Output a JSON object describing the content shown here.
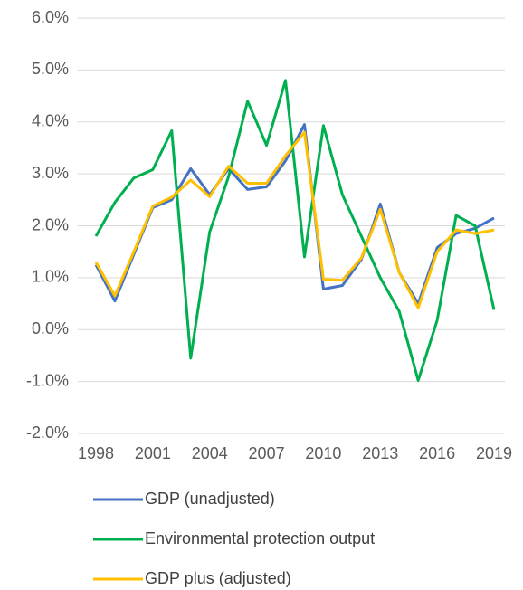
{
  "chart_data": {
    "type": "line",
    "x": [
      1998,
      1999,
      2000,
      2001,
      2002,
      2003,
      2004,
      2005,
      2006,
      2007,
      2008,
      2009,
      2010,
      2011,
      2012,
      2013,
      2014,
      2015,
      2016,
      2017,
      2018,
      2019
    ],
    "xlim": [
      1998,
      2019
    ],
    "xticks": [
      1998,
      2001,
      2004,
      2007,
      2010,
      2013,
      2016,
      2019
    ],
    "ylim": [
      -2,
      6
    ],
    "yticks": [
      {
        "value": -2,
        "label": "-2.0%"
      },
      {
        "value": -1,
        "label": "-1.0%"
      },
      {
        "value": 0,
        "label": "0.0%"
      },
      {
        "value": 1,
        "label": "1.0%"
      },
      {
        "value": 2,
        "label": "2.0%"
      },
      {
        "value": 3,
        "label": "3.0%"
      },
      {
        "value": 4,
        "label": "4.0%"
      },
      {
        "value": 5,
        "label": "5.0%"
      },
      {
        "value": 6,
        "label": "6.0%"
      }
    ],
    "grid": true,
    "legend": "bottom",
    "series": [
      {
        "name": "GDP (unadjusted)",
        "color": "#4472c4",
        "values": [
          1.25,
          0.55,
          1.45,
          2.35,
          2.5,
          3.1,
          2.6,
          3.1,
          2.7,
          2.75,
          3.25,
          3.95,
          0.78,
          0.85,
          1.35,
          2.42,
          1.1,
          0.5,
          1.58,
          1.85,
          1.95,
          2.15
        ]
      },
      {
        "name": "Environmental protection output",
        "color": "#00b050",
        "values": [
          1.8,
          2.45,
          2.92,
          3.08,
          3.83,
          -0.55,
          1.88,
          2.95,
          4.4,
          3.55,
          4.8,
          1.4,
          3.93,
          2.6,
          1.8,
          1.0,
          0.35,
          -0.98,
          0.18,
          2.2,
          2.0,
          0.38
        ]
      },
      {
        "name": "GDP plus (adjusted)",
        "color": "#ffc000",
        "values": [
          1.3,
          0.65,
          1.5,
          2.38,
          2.55,
          2.88,
          2.56,
          3.15,
          2.82,
          2.82,
          3.35,
          3.8,
          0.97,
          0.95,
          1.38,
          2.32,
          1.1,
          0.42,
          1.5,
          1.92,
          1.85,
          1.92
        ]
      }
    ]
  }
}
